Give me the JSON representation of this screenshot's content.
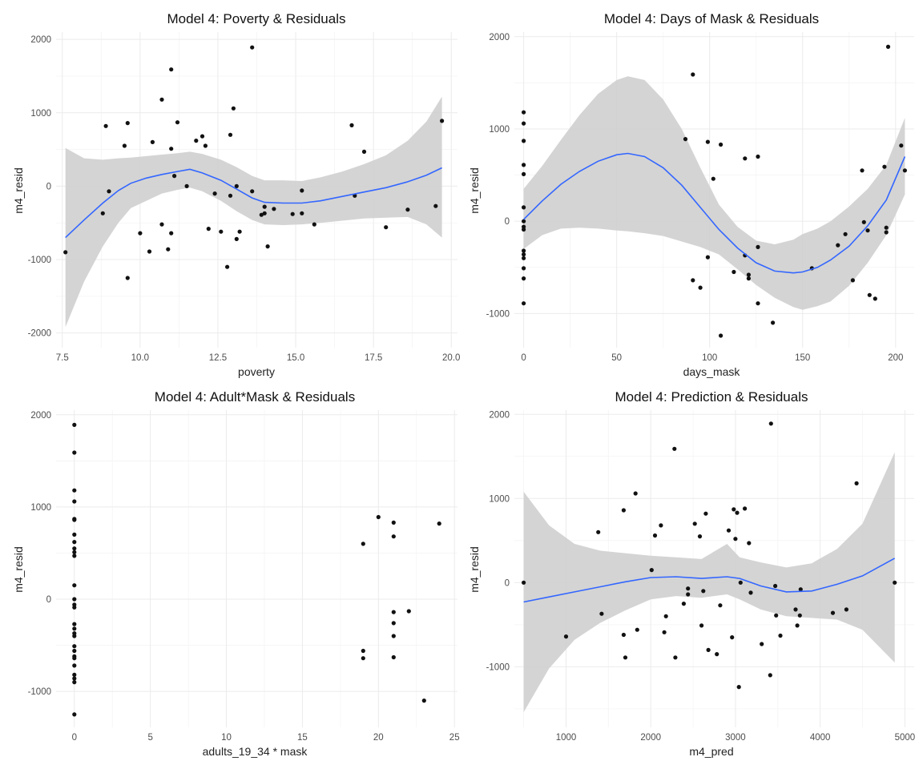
{
  "figure": {
    "panel_count": 4
  },
  "colors": {
    "point": "#111111",
    "smooth_line": "#3366ff",
    "ribbon": "#cfcfcf",
    "grid": "#ebebeb",
    "background": "#ffffff"
  },
  "chart_data": [
    {
      "type": "scatter",
      "title": "Model 4: Poverty & Residuals",
      "xlabel": "poverty",
      "ylabel": "m4_resid",
      "xlim": [
        7.3,
        20.2
      ],
      "ylim": [
        -2200,
        2100
      ],
      "xticks": [
        7.5,
        10.0,
        12.5,
        15.0,
        17.5,
        20.0
      ],
      "xtick_labels": [
        "7.5",
        "10.0",
        "12.5",
        "15.0",
        "17.5",
        "20.0"
      ],
      "yticks": [
        -2000,
        -1000,
        0,
        1000,
        2000
      ],
      "ytick_labels": [
        "-2000",
        "-1000",
        "0",
        "1000",
        "2000"
      ],
      "grid": true,
      "points": [
        [
          7.6,
          -900
        ],
        [
          8.8,
          -370
        ],
        [
          8.9,
          820
        ],
        [
          9.0,
          -70
        ],
        [
          9.5,
          550
        ],
        [
          9.6,
          860
        ],
        [
          9.6,
          -1250
        ],
        [
          10.0,
          -640
        ],
        [
          10.3,
          -890
        ],
        [
          10.4,
          600
        ],
        [
          10.7,
          1180
        ],
        [
          10.7,
          -520
        ],
        [
          10.9,
          -860
        ],
        [
          11.0,
          510
        ],
        [
          11.0,
          -640
        ],
        [
          11.0,
          1590
        ],
        [
          11.1,
          140
        ],
        [
          11.2,
          870
        ],
        [
          11.5,
          0
        ],
        [
          11.8,
          620
        ],
        [
          12.0,
          680
        ],
        [
          12.1,
          550
        ],
        [
          12.2,
          -580
        ],
        [
          12.4,
          -100
        ],
        [
          12.6,
          -620
        ],
        [
          12.8,
          -1100
        ],
        [
          12.9,
          700
        ],
        [
          12.9,
          -130
        ],
        [
          13.0,
          1060
        ],
        [
          13.1,
          0
        ],
        [
          13.1,
          -720
        ],
        [
          13.2,
          -620
        ],
        [
          13.6,
          1890
        ],
        [
          13.6,
          -70
        ],
        [
          13.9,
          -390
        ],
        [
          14.0,
          -280
        ],
        [
          14.0,
          -370
        ],
        [
          14.1,
          -820
        ],
        [
          14.3,
          -310
        ],
        [
          14.9,
          -380
        ],
        [
          15.2,
          -60
        ],
        [
          15.2,
          -370
        ],
        [
          15.6,
          -520
        ],
        [
          16.8,
          830
        ],
        [
          16.9,
          -130
        ],
        [
          17.2,
          470
        ],
        [
          17.9,
          -560
        ],
        [
          18.6,
          -320
        ],
        [
          19.5,
          -270
        ],
        [
          19.7,
          890
        ]
      ],
      "smooth": {
        "x": [
          7.6,
          8.2,
          8.8,
          9.3,
          9.7,
          10.2,
          10.7,
          11.2,
          11.6,
          12.0,
          12.6,
          13.1,
          13.6,
          14.0,
          14.6,
          15.2,
          15.8,
          16.5,
          17.2,
          17.9,
          18.6,
          19.2,
          19.7
        ],
        "y": [
          -700,
          -460,
          -230,
          -60,
          40,
          110,
          160,
          200,
          230,
          180,
          80,
          -40,
          -160,
          -220,
          -230,
          -230,
          -200,
          -140,
          -80,
          -20,
          60,
          150,
          250
        ],
        "lower": [
          -1920,
          -1300,
          -820,
          -500,
          -300,
          -200,
          -100,
          -50,
          -20,
          -70,
          -200,
          -340,
          -460,
          -520,
          -530,
          -520,
          -500,
          -470,
          -440,
          -430,
          -420,
          -520,
          -700
        ],
        "upper": [
          520,
          380,
          360,
          380,
          390,
          410,
          430,
          450,
          470,
          440,
          360,
          260,
          140,
          80,
          80,
          70,
          120,
          200,
          300,
          420,
          620,
          880,
          1220
        ]
      }
    },
    {
      "type": "scatter",
      "title": "Model 4: Days of Mask & Residuals",
      "xlabel": "days_mask",
      "ylabel": "m4_resid",
      "xlim": [
        -5,
        210
      ],
      "ylim": [
        -1370,
        2050
      ],
      "xticks": [
        0,
        50,
        100,
        150,
        200
      ],
      "xtick_labels": [
        "0",
        "50",
        "100",
        "150",
        "200"
      ],
      "yticks": [
        -1000,
        0,
        1000,
        2000
      ],
      "ytick_labels": [
        "-1000",
        "0",
        "1000",
        "2000"
      ],
      "grid": true,
      "points": [
        [
          0,
          1180
        ],
        [
          0,
          1060
        ],
        [
          0,
          870
        ],
        [
          0,
          610
        ],
        [
          0,
          510
        ],
        [
          0,
          150
        ],
        [
          0,
          0
        ],
        [
          0,
          -60
        ],
        [
          0,
          -90
        ],
        [
          0,
          -320
        ],
        [
          0,
          -360
        ],
        [
          0,
          -400
        ],
        [
          0,
          -510
        ],
        [
          0,
          -620
        ],
        [
          0,
          -890
        ],
        [
          87,
          890
        ],
        [
          91,
          1590
        ],
        [
          91,
          -640
        ],
        [
          95,
          -720
        ],
        [
          99,
          860
        ],
        [
          99,
          -390
        ],
        [
          102,
          460
        ],
        [
          106,
          830
        ],
        [
          106,
          -1240
        ],
        [
          113,
          -550
        ],
        [
          119,
          680
        ],
        [
          119,
          -370
        ],
        [
          121,
          -580
        ],
        [
          121,
          -620
        ],
        [
          126,
          700
        ],
        [
          126,
          -280
        ],
        [
          126,
          -890
        ],
        [
          134,
          -1100
        ],
        [
          155,
          -510
        ],
        [
          169,
          -260
        ],
        [
          173,
          -140
        ],
        [
          177,
          -640
        ],
        [
          182,
          550
        ],
        [
          183,
          -10
        ],
        [
          185,
          -100
        ],
        [
          186,
          -800
        ],
        [
          189,
          -840
        ],
        [
          194,
          590
        ],
        [
          195,
          -70
        ],
        [
          195,
          -120
        ],
        [
          196,
          1890
        ],
        [
          203,
          820
        ],
        [
          205,
          550
        ]
      ],
      "smooth": {
        "x": [
          0,
          10,
          20,
          30,
          40,
          50,
          56,
          65,
          75,
          85,
          95,
          105,
          115,
          125,
          135,
          145,
          150,
          158,
          165,
          175,
          185,
          195,
          205
        ],
        "y": [
          20,
          220,
          400,
          540,
          650,
          720,
          735,
          700,
          580,
          390,
          150,
          -90,
          -290,
          -450,
          -540,
          -560,
          -550,
          -500,
          -420,
          -270,
          -50,
          230,
          700
        ],
        "lower": [
          -300,
          -150,
          -80,
          -70,
          -80,
          -100,
          -110,
          -130,
          -160,
          -220,
          -280,
          -360,
          -520,
          -690,
          -830,
          -930,
          -960,
          -920,
          -870,
          -700,
          -450,
          -150,
          290
        ],
        "upper": [
          350,
          600,
          880,
          1150,
          1380,
          1530,
          1570,
          1530,
          1320,
          1000,
          580,
          180,
          -60,
          -210,
          -250,
          -200,
          -140,
          -80,
          0,
          160,
          350,
          610,
          1120
        ]
      }
    },
    {
      "type": "scatter",
      "title": "Model 4: Adult*Mask & Residuals",
      "xlabel": "adults_19_34 * mask",
      "ylabel": "m4_resid",
      "xlim": [
        -1.2,
        25.2
      ],
      "ylim": [
        -1390,
        2050
      ],
      "xticks": [
        0,
        5,
        10,
        15,
        20,
        25
      ],
      "xtick_labels": [
        "0",
        "5",
        "10",
        "15",
        "20",
        "25"
      ],
      "yticks": [
        -1000,
        0,
        1000,
        2000
      ],
      "ytick_labels": [
        "-1000",
        "0",
        "1000",
        "2000"
      ],
      "grid": true,
      "points": [
        [
          0,
          1890
        ],
        [
          0,
          1590
        ],
        [
          0,
          1180
        ],
        [
          0,
          1060
        ],
        [
          0,
          870
        ],
        [
          0,
          860
        ],
        [
          0,
          700
        ],
        [
          0,
          620
        ],
        [
          0,
          550
        ],
        [
          0,
          510
        ],
        [
          0,
          470
        ],
        [
          0,
          150
        ],
        [
          0,
          0
        ],
        [
          0,
          -60
        ],
        [
          0,
          -90
        ],
        [
          0,
          -270
        ],
        [
          0,
          -320
        ],
        [
          0,
          -370
        ],
        [
          0,
          -400
        ],
        [
          0,
          -510
        ],
        [
          0,
          -560
        ],
        [
          0,
          -620
        ],
        [
          0,
          -640
        ],
        [
          0,
          -720
        ],
        [
          0,
          -820
        ],
        [
          0,
          -860
        ],
        [
          0,
          -900
        ],
        [
          0,
          -1250
        ],
        [
          19,
          600
        ],
        [
          19,
          -560
        ],
        [
          19,
          -640
        ],
        [
          20,
          890
        ],
        [
          21,
          830
        ],
        [
          21,
          680
        ],
        [
          21,
          -140
        ],
        [
          21,
          -260
        ],
        [
          21,
          -400
        ],
        [
          21,
          -630
        ],
        [
          22,
          -130
        ],
        [
          23,
          -1100
        ],
        [
          24,
          820
        ]
      ],
      "smooth": null
    },
    {
      "type": "scatter",
      "title": "Model 4: Prediction & Residuals",
      "xlabel": "m4_pred",
      "ylabel": "m4_resid",
      "xlim": [
        390,
        5110
      ],
      "ylim": [
        -1720,
        2050
      ],
      "xticks": [
        1000,
        2000,
        3000,
        4000,
        5000
      ],
      "xtick_labels": [
        "1000",
        "2000",
        "3000",
        "4000",
        "5000"
      ],
      "yticks": [
        -1000,
        0,
        1000,
        2000
      ],
      "ytick_labels": [
        "-1000",
        "0",
        "1000",
        "2000"
      ],
      "grid": true,
      "points": [
        [
          500,
          0
        ],
        [
          1000,
          -640
        ],
        [
          1380,
          600
        ],
        [
          1420,
          -370
        ],
        [
          1680,
          860
        ],
        [
          1680,
          -620
        ],
        [
          1700,
          -890
        ],
        [
          1820,
          1060
        ],
        [
          1840,
          -560
        ],
        [
          2010,
          150
        ],
        [
          2050,
          560
        ],
        [
          2120,
          680
        ],
        [
          2180,
          -400
        ],
        [
          2160,
          -590
        ],
        [
          2280,
          1590
        ],
        [
          2290,
          -890
        ],
        [
          2390,
          -250
        ],
        [
          2440,
          -140
        ],
        [
          2440,
          -70
        ],
        [
          2520,
          700
        ],
        [
          2580,
          550
        ],
        [
          2600,
          -510
        ],
        [
          2620,
          -100
        ],
        [
          2650,
          820
        ],
        [
          2680,
          -800
        ],
        [
          2780,
          -850
        ],
        [
          2820,
          -270
        ],
        [
          2920,
          620
        ],
        [
          2960,
          -650
        ],
        [
          2980,
          870
        ],
        [
          3000,
          520
        ],
        [
          3020,
          830
        ],
        [
          3040,
          -1240
        ],
        [
          3060,
          0
        ],
        [
          3110,
          880
        ],
        [
          3160,
          470
        ],
        [
          3180,
          -120
        ],
        [
          3310,
          -730
        ],
        [
          3410,
          -1100
        ],
        [
          3420,
          1890
        ],
        [
          3470,
          -40
        ],
        [
          3480,
          -390
        ],
        [
          3530,
          -630
        ],
        [
          3710,
          -320
        ],
        [
          3730,
          -510
        ],
        [
          3760,
          -390
        ],
        [
          3770,
          -80
        ],
        [
          4150,
          -360
        ],
        [
          4310,
          -320
        ],
        [
          4430,
          1180
        ],
        [
          4880,
          0
        ]
      ],
      "smooth": {
        "x": [
          500,
          800,
          1100,
          1400,
          1700,
          2000,
          2300,
          2600,
          2900,
          3050,
          3300,
          3600,
          3900,
          4200,
          4500,
          4880
        ],
        "y": [
          -230,
          -170,
          -110,
          -50,
          10,
          60,
          70,
          50,
          70,
          50,
          -40,
          -110,
          -100,
          -20,
          80,
          290
        ],
        "lower": [
          -1540,
          -1020,
          -680,
          -480,
          -330,
          -200,
          -160,
          -180,
          -140,
          -200,
          -320,
          -400,
          -420,
          -440,
          -560,
          -950
        ],
        "upper": [
          1080,
          680,
          460,
          380,
          350,
          320,
          300,
          280,
          460,
          300,
          240,
          180,
          230,
          400,
          700,
          1550
        ]
      }
    }
  ]
}
